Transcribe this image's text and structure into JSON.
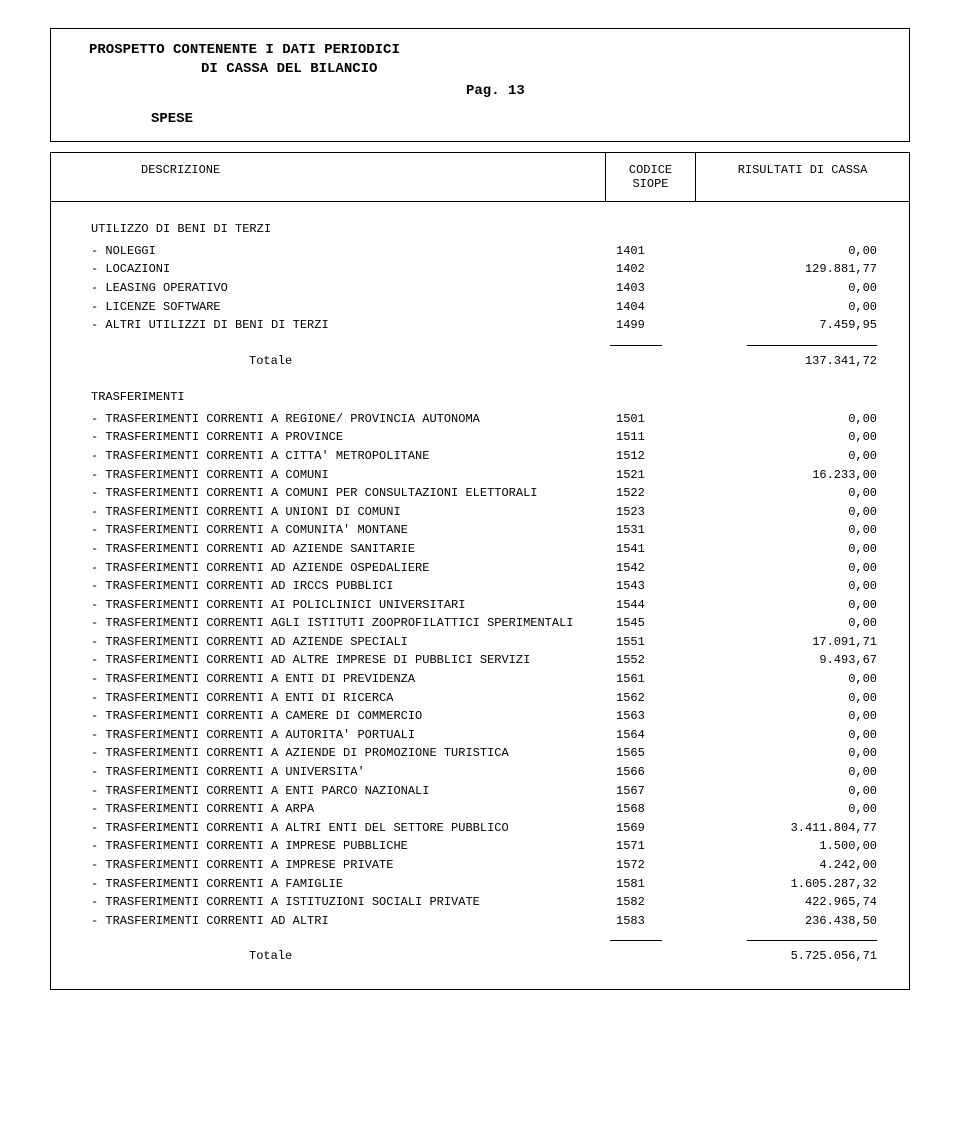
{
  "header": {
    "title_line1": "PROSPETTO CONTENENTE I DATI PERIODICI",
    "title_line2": "DI CASSA DEL BILANCIO",
    "page_label": "Pag. 13",
    "section_label": "SPESE"
  },
  "table_head": {
    "descrizione": "DESCRIZIONE",
    "codice": "CODICE",
    "siope": "SIOPE",
    "risultati": "RISULTATI DI CASSA"
  },
  "group1": {
    "title": "UTILIZZO DI BENI DI TERZI",
    "rows": [
      {
        "desc": "- NOLEGGI",
        "code": "1401",
        "val": "0,00"
      },
      {
        "desc": "- LOCAZIONI",
        "code": "1402",
        "val": "129.881,77"
      },
      {
        "desc": "- LEASING OPERATIVO",
        "code": "1403",
        "val": "0,00"
      },
      {
        "desc": "- LICENZE SOFTWARE",
        "code": "1404",
        "val": "0,00"
      },
      {
        "desc": "- ALTRI UTILIZZI DI BENI DI TERZI",
        "code": "1499",
        "val": "7.459,95"
      }
    ],
    "totale_label": "Totale",
    "totale_val": "137.341,72"
  },
  "group2": {
    "title": "TRASFERIMENTI",
    "rows": [
      {
        "desc": "- TRASFERIMENTI CORRENTI A REGIONE/ PROVINCIA AUTONOMA",
        "code": "1501",
        "val": "0,00"
      },
      {
        "desc": "- TRASFERIMENTI CORRENTI A PROVINCE",
        "code": "1511",
        "val": "0,00"
      },
      {
        "desc": "- TRASFERIMENTI CORRENTI A CITTA' METROPOLITANE",
        "code": "1512",
        "val": "0,00"
      },
      {
        "desc": "- TRASFERIMENTI CORRENTI A COMUNI",
        "code": "1521",
        "val": "16.233,00"
      },
      {
        "desc": "- TRASFERIMENTI CORRENTI A COMUNI PER CONSULTAZIONI ELETTORALI",
        "code": "1522",
        "val": "0,00"
      },
      {
        "desc": "- TRASFERIMENTI CORRENTI A UNIONI DI COMUNI",
        "code": "1523",
        "val": "0,00"
      },
      {
        "desc": "- TRASFERIMENTI CORRENTI A COMUNITA' MONTANE",
        "code": "1531",
        "val": "0,00"
      },
      {
        "desc": "- TRASFERIMENTI CORRENTI AD AZIENDE SANITARIE",
        "code": "1541",
        "val": "0,00"
      },
      {
        "desc": "- TRASFERIMENTI CORRENTI AD AZIENDE OSPEDALIERE",
        "code": "1542",
        "val": "0,00"
      },
      {
        "desc": "- TRASFERIMENTI CORRENTI AD IRCCS PUBBLICI",
        "code": "1543",
        "val": "0,00"
      },
      {
        "desc": "- TRASFERIMENTI CORRENTI AI POLICLINICI UNIVERSITARI",
        "code": "1544",
        "val": "0,00"
      },
      {
        "desc": "- TRASFERIMENTI CORRENTI AGLI ISTITUTI ZOOPROFILATTICI SPERIMENTALI",
        "code": "1545",
        "val": "0,00"
      },
      {
        "desc": "- TRASFERIMENTI CORRENTI AD AZIENDE SPECIALI",
        "code": "1551",
        "val": "17.091,71"
      },
      {
        "desc": "- TRASFERIMENTI CORRENTI AD ALTRE IMPRESE DI PUBBLICI SERVIZI",
        "code": "1552",
        "val": "9.493,67"
      },
      {
        "desc": "- TRASFERIMENTI CORRENTI A ENTI DI PREVIDENZA",
        "code": "1561",
        "val": "0,00"
      },
      {
        "desc": "- TRASFERIMENTI CORRENTI A ENTI DI RICERCA",
        "code": "1562",
        "val": "0,00"
      },
      {
        "desc": "- TRASFERIMENTI CORRENTI A CAMERE DI COMMERCIO",
        "code": "1563",
        "val": "0,00"
      },
      {
        "desc": "- TRASFERIMENTI CORRENTI A AUTORITA' PORTUALI",
        "code": "1564",
        "val": "0,00"
      },
      {
        "desc": "- TRASFERIMENTI CORRENTI A AZIENDE DI PROMOZIONE TURISTICA",
        "code": "1565",
        "val": "0,00"
      },
      {
        "desc": "- TRASFERIMENTI CORRENTI A UNIVERSITA'",
        "code": "1566",
        "val": "0,00"
      },
      {
        "desc": "- TRASFERIMENTI CORRENTI A ENTI PARCO NAZIONALI",
        "code": "1567",
        "val": "0,00"
      },
      {
        "desc": "- TRASFERIMENTI CORRENTI A ARPA",
        "code": "1568",
        "val": "0,00"
      },
      {
        "desc": "- TRASFERIMENTI CORRENTI A ALTRI ENTI DEL SETTORE PUBBLICO",
        "code": "1569",
        "val": "3.411.804,77"
      },
      {
        "desc": "- TRASFERIMENTI CORRENTI A IMPRESE PUBBLICHE",
        "code": "1571",
        "val": "1.500,00"
      },
      {
        "desc": "- TRASFERIMENTI CORRENTI A IMPRESE PRIVATE",
        "code": "1572",
        "val": "4.242,00"
      },
      {
        "desc": "- TRASFERIMENTI CORRENTI A FAMIGLIE",
        "code": "1581",
        "val": "1.605.287,32"
      },
      {
        "desc": "- TRASFERIMENTI CORRENTI A ISTITUZIONI SOCIALI PRIVATE",
        "code": "1582",
        "val": "422.965,74"
      },
      {
        "desc": "- TRASFERIMENTI CORRENTI AD ALTRI",
        "code": "1583",
        "val": "236.438,50"
      }
    ],
    "totale_label": "Totale",
    "totale_val": "5.725.056,71"
  }
}
